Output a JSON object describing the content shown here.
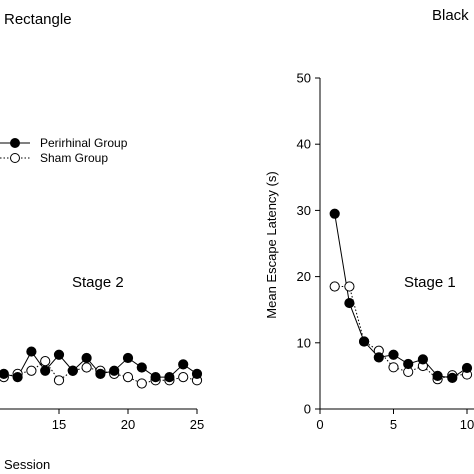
{
  "chart_data": [
    {
      "type": "line",
      "title": "Rectangle",
      "annotation": "Stage 2",
      "xlabel": "Session",
      "ylabel": "",
      "xlim": [
        10,
        25
      ],
      "ylim": [
        0,
        50
      ],
      "xticks": [
        15,
        20,
        25
      ],
      "grid": false,
      "legend_position": "upper-left",
      "series": [
        {
          "name": "Perirhinal Group",
          "marker": "filled-circle",
          "linestyle": "solid",
          "x": [
            11,
            12,
            13,
            14,
            15,
            16,
            17,
            18,
            19,
            20,
            21,
            22,
            23,
            24,
            25
          ],
          "y": [
            5.5,
            5.0,
            9.0,
            6.0,
            8.5,
            6.0,
            8.0,
            5.5,
            6.0,
            8.0,
            6.5,
            5.0,
            5.0,
            7.0,
            5.5
          ]
        },
        {
          "name": "Sham Group",
          "marker": "open-circle",
          "linestyle": "dotted",
          "x": [
            11,
            12,
            13,
            14,
            15,
            16,
            17,
            18,
            19,
            20,
            21,
            22,
            23,
            24,
            25
          ],
          "y": [
            5.0,
            5.5,
            6.0,
            7.5,
            4.5,
            6.0,
            6.5,
            6.0,
            5.5,
            5.0,
            4.0,
            4.5,
            4.5,
            5.0,
            4.5
          ]
        }
      ]
    },
    {
      "type": "line",
      "title": "Black",
      "annotation": "Stage 1",
      "xlabel": "",
      "ylabel": "Mean Escape Latency (s)",
      "xlim": [
        0,
        10
      ],
      "ylim": [
        0,
        50
      ],
      "xticks": [
        0,
        5,
        10
      ],
      "yticks": [
        0,
        10,
        20,
        30,
        40,
        50
      ],
      "grid": false,
      "series": [
        {
          "name": "Perirhinal Group",
          "marker": "filled-circle",
          "linestyle": "solid",
          "x": [
            1,
            2,
            3,
            4,
            5,
            6,
            7,
            8,
            9,
            10
          ],
          "y": [
            29.5,
            16.0,
            10.2,
            7.8,
            8.2,
            6.8,
            7.5,
            5.0,
            4.7,
            6.2
          ]
        },
        {
          "name": "Sham Group",
          "marker": "open-circle",
          "linestyle": "dotted",
          "x": [
            1,
            2,
            3,
            4,
            5,
            6,
            7,
            8,
            9,
            10
          ],
          "y": [
            18.5,
            18.5,
            10.2,
            8.8,
            6.3,
            5.6,
            6.5,
            4.5,
            5.1,
            5.2
          ]
        }
      ]
    }
  ]
}
